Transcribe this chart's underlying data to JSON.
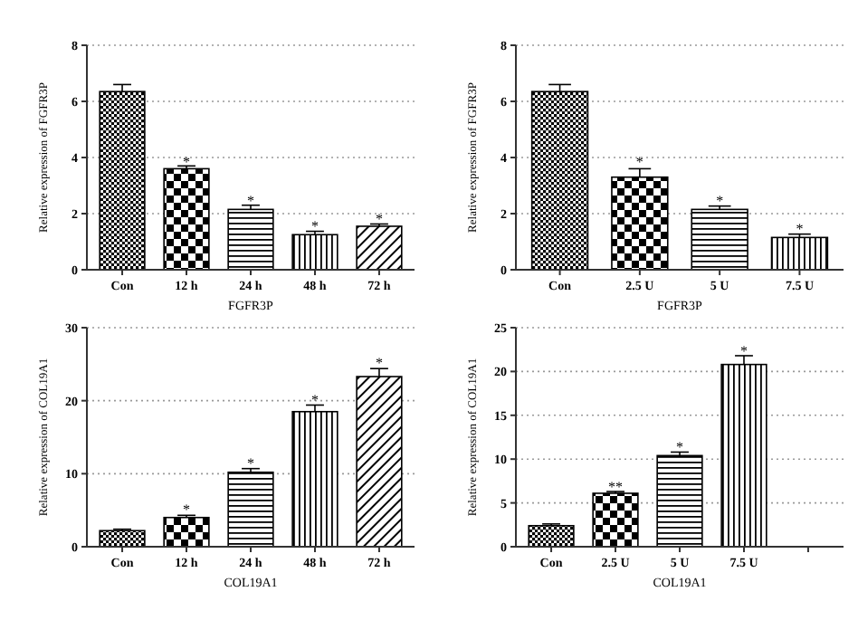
{
  "chart_data": [
    {
      "type": "bar",
      "categories": [
        "Con",
        "12 h",
        "24 h",
        "48 h",
        "72 h"
      ],
      "values": [
        6.35,
        3.6,
        2.15,
        1.25,
        1.55
      ],
      "errors": [
        0.25,
        0.1,
        0.15,
        0.12,
        0.08
      ],
      "color": "#000000",
      "ylim": [
        0,
        8
      ],
      "yticks": [
        0,
        2,
        4,
        6,
        8
      ],
      "grid": "y",
      "xlabel": "FGFR3P",
      "ylabel": "Relative expression of FGFR3P",
      "annotations": [
        {
          "text": "*",
          "x": "12 h",
          "y": 3.9
        },
        {
          "text": "*",
          "x": "24 h",
          "y": 2.5
        },
        {
          "text": "*",
          "x": "48 h",
          "y": 1.6
        },
        {
          "text": "*",
          "x": "72 h",
          "y": 1.85
        }
      ]
    },
    {
      "type": "bar",
      "categories": [
        "Con",
        "2.5 U",
        "5 U",
        "7.5 U"
      ],
      "values": [
        6.35,
        3.3,
        2.15,
        1.15
      ],
      "errors": [
        0.25,
        0.3,
        0.12,
        0.12
      ],
      "color": "#000000",
      "ylim": [
        0,
        8
      ],
      "yticks": [
        0,
        2,
        4,
        6,
        8
      ],
      "grid": "y",
      "xlabel": "FGFR3P",
      "ylabel": "Relative expression of FGFR3P",
      "annotations": [
        {
          "text": "*",
          "x": "2.5 U",
          "y": 3.9
        },
        {
          "text": "*",
          "x": "5 U",
          "y": 2.5
        },
        {
          "text": "*",
          "x": "7.5 U",
          "y": 1.5
        }
      ]
    },
    {
      "type": "bar",
      "categories": [
        "Con",
        "12 h",
        "24 h",
        "48 h",
        "72 h"
      ],
      "values": [
        2.2,
        4.0,
        10.2,
        18.5,
        23.3
      ],
      "errors": [
        0.2,
        0.3,
        0.5,
        0.9,
        1.1
      ],
      "color": "#000000",
      "ylim": [
        0,
        30
      ],
      "yticks": [
        0,
        10,
        20,
        30
      ],
      "grid": "y",
      "xlabel": "COL19A1",
      "ylabel": "Relative expression of COL19A1",
      "annotations": [
        {
          "text": "*",
          "x": "12 h",
          "y": 5.2
        },
        {
          "text": "*",
          "x": "24 h",
          "y": 11.6
        },
        {
          "text": "*",
          "x": "48 h",
          "y": 20.3
        },
        {
          "text": "*",
          "x": "72 h",
          "y": 25.4
        }
      ]
    },
    {
      "type": "bar",
      "categories": [
        "Con",
        "2.5 U",
        "5 U",
        "7.5 U",
        null
      ],
      "values": [
        2.4,
        6.1,
        10.4,
        20.8,
        null
      ],
      "errors": [
        0.2,
        0.2,
        0.4,
        1.0,
        null
      ],
      "color": "#000000",
      "ylim": [
        0,
        25
      ],
      "yticks": [
        0,
        5,
        10,
        15,
        20,
        25
      ],
      "grid": "y",
      "xlabel": "COL19A1",
      "ylabel": "Relative expression of COL19A1",
      "annotations": [
        {
          "text": "**",
          "x": "2.5 U",
          "y": 7.0
        },
        {
          "text": "*",
          "x": "5 U",
          "y": 11.5
        },
        {
          "text": "*",
          "x": "7.5 U",
          "y": 22.5
        }
      ]
    }
  ]
}
